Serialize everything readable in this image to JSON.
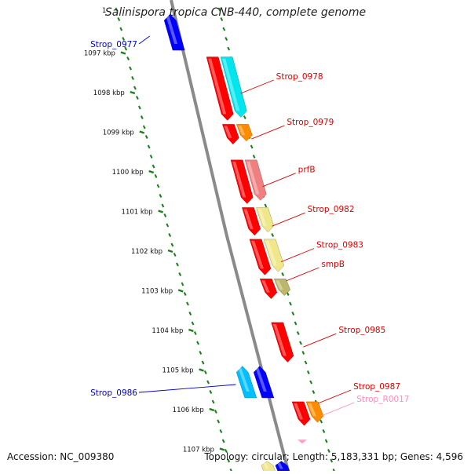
{
  "title": "Salinispora tropica CNB-440, complete genome",
  "footer": {
    "accession": "Accession: NC_009380",
    "summary": "Topology: circular; Length: 5,183,331 bp; Genes: 4,596"
  },
  "top_partial_tick": "1",
  "colors": {
    "backbone": "#8a8a8a",
    "tick": "#1a7f1a",
    "red": "#ff0000",
    "cyan": "#00e5ee",
    "orange": "#ff8c00",
    "salmon": "#f08080",
    "khaki": "#f0e68c",
    "olive": "#bdb76b",
    "blue": "#0000ff",
    "deepskyblue": "#00bfff",
    "pink": "#ff9ec4",
    "label_red": "#dd0000",
    "label_blue": "#0000cc",
    "label_pink": "#ff8cbc"
  },
  "ticks": [
    {
      "kb": 1097,
      "label": "1097 kbp"
    },
    {
      "kb": 1098,
      "label": "1098 kbp"
    },
    {
      "kb": 1099,
      "label": "1099 kbp"
    },
    {
      "kb": 1100,
      "label": "1100 kbp"
    },
    {
      "kb": 1101,
      "label": "1101 kbp"
    },
    {
      "kb": 1102,
      "label": "1102 kbp"
    },
    {
      "kb": 1103,
      "label": "1103 kbp"
    },
    {
      "kb": 1104,
      "label": "1104 kbp"
    },
    {
      "kb": 1105,
      "label": "1105 kbp"
    },
    {
      "kb": 1106,
      "label": "1106 kbp"
    },
    {
      "kb": 1107,
      "label": "1107 kbp"
    }
  ],
  "genes": [
    {
      "name": "Strop_0977",
      "strand": "-",
      "start_kb": 1096.3,
      "end_kb": 1096.9,
      "track": "mid",
      "color": "blue",
      "companion": null,
      "label_color": "label_blue",
      "labelled": true
    },
    {
      "name": "Strop_0978",
      "strand": "+",
      "start_kb": 1097.2,
      "end_kb": 1098.8,
      "track": "plus",
      "color": "red",
      "companion": "cyan",
      "label_color": "label_red",
      "labelled": true
    },
    {
      "name": "Strop_0979",
      "strand": "+",
      "start_kb": 1098.9,
      "end_kb": 1099.4,
      "track": "plus",
      "color": "red",
      "companion": "orange",
      "label_color": "label_red",
      "labelled": true
    },
    {
      "name": "prfB",
      "strand": "+",
      "start_kb": 1099.8,
      "end_kb": 1100.9,
      "track": "plus",
      "color": "red",
      "companion": "salmon",
      "label_color": "label_red",
      "labelled": true
    },
    {
      "name": "Strop_0982",
      "strand": "+",
      "start_kb": 1101.0,
      "end_kb": 1101.7,
      "track": "plus",
      "color": "red",
      "companion": "khaki",
      "label_color": "label_red",
      "labelled": true
    },
    {
      "name": "Strop_0983",
      "strand": "+",
      "start_kb": 1101.8,
      "end_kb": 1102.7,
      "track": "plus",
      "color": "red",
      "companion": "khaki",
      "label_color": "label_red",
      "labelled": true
    },
    {
      "name": "smpB",
      "strand": "+",
      "start_kb": 1102.8,
      "end_kb": 1103.3,
      "track": "plus",
      "color": "red",
      "companion": "olive",
      "label_color": "label_red",
      "labelled": true
    },
    {
      "name": "Strop_0985",
      "strand": "+",
      "start_kb": 1103.9,
      "end_kb": 1104.9,
      "track": "plus",
      "color": "red",
      "companion": null,
      "label_color": "label_red",
      "labelled": true
    },
    {
      "name": "Strop_0986",
      "strand": "-",
      "start_kb": 1105.0,
      "end_kb": 1105.8,
      "track": "mid",
      "color": "blue",
      "companion": "deepskyblue",
      "label_color": "label_blue",
      "labelled": true
    },
    {
      "name": "Strop_0987",
      "strand": "+",
      "start_kb": 1105.9,
      "end_kb": 1106.5,
      "track": "plus",
      "color": "red",
      "companion": "orange",
      "label_color": "label_red",
      "labelled": true
    },
    {
      "name": "Strop_R0017",
      "strand": "+",
      "start_kb": 1106.5,
      "end_kb": 1106.6,
      "track": "plus",
      "color": "pink",
      "companion": null,
      "label_color": "label_pink",
      "labelled": true
    },
    {
      "name": "",
      "strand": "-",
      "start_kb": 1107.4,
      "end_kb": 1107.7,
      "track": "mid",
      "color": "blue",
      "companion": "khaki",
      "label_color": "label_blue",
      "labelled": false
    }
  ]
}
